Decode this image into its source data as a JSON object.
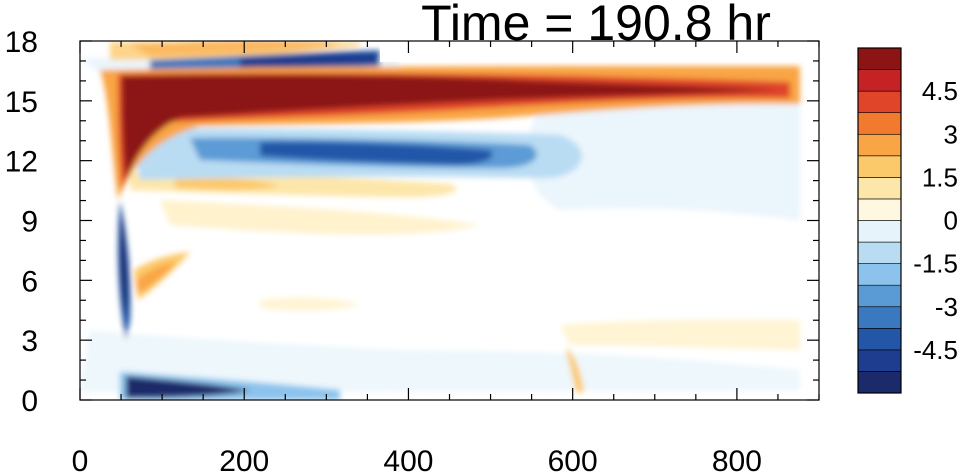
{
  "chart_data": {
    "type": "heatmap",
    "title": "Time = 190.8 hr",
    "xlim": [
      0,
      900
    ],
    "ylim": [
      0,
      18
    ],
    "x_ticks": [
      0,
      200,
      400,
      600,
      800
    ],
    "y_ticks": [
      0,
      3,
      6,
      9,
      12,
      15,
      18
    ],
    "colorbar": {
      "range": [
        -6,
        6
      ],
      "step": 0.75,
      "labels": [
        "4.5",
        "3",
        "1.5",
        "0",
        "-1.5",
        "-3",
        "-4.5"
      ],
      "label_values": [
        4.5,
        3,
        1.5,
        0,
        -1.5,
        -3,
        -4.5
      ],
      "colors": [
        "#1b2a6b",
        "#1f3d8f",
        "#2456a8",
        "#3a78c0",
        "#5b9bd5",
        "#8cc3ec",
        "#b9dcf3",
        "#e6f3fb",
        "#fff8e1",
        "#fde6a9",
        "#fcc96a",
        "#f9a545",
        "#f27a2e",
        "#e0452a",
        "#c42224",
        "#8c1414"
      ]
    },
    "features": [
      {
        "desc": "strong positive band",
        "x": [
          60,
          900
        ],
        "y_center": 15.3,
        "value": 6
      },
      {
        "desc": "negative band below positive band",
        "x": [
          150,
          600
        ],
        "y_center": 12.5,
        "value": -4
      },
      {
        "desc": "negative band near surface",
        "x": [
          60,
          330
        ],
        "y_center": 0.7,
        "value": -5.5
      },
      {
        "desc": "negative band near top",
        "x": [
          110,
          380
        ],
        "y_center": 16.9,
        "value": -4
      },
      {
        "desc": "positive band at top",
        "x": [
          130,
          330
        ],
        "y_center": 17.8,
        "value": 3
      },
      {
        "desc": "narrow negative vertical feature",
        "x": [
          52,
          60
        ],
        "y_center": 6,
        "value": -4.5
      },
      {
        "desc": "weak positive band",
        "x": [
          100,
          450
        ],
        "y_center": 10.8,
        "value": 1.8
      },
      {
        "desc": "weak positive feature",
        "x": [
          90,
          180
        ],
        "y_center": 6.5,
        "value": 2.2
      }
    ]
  }
}
